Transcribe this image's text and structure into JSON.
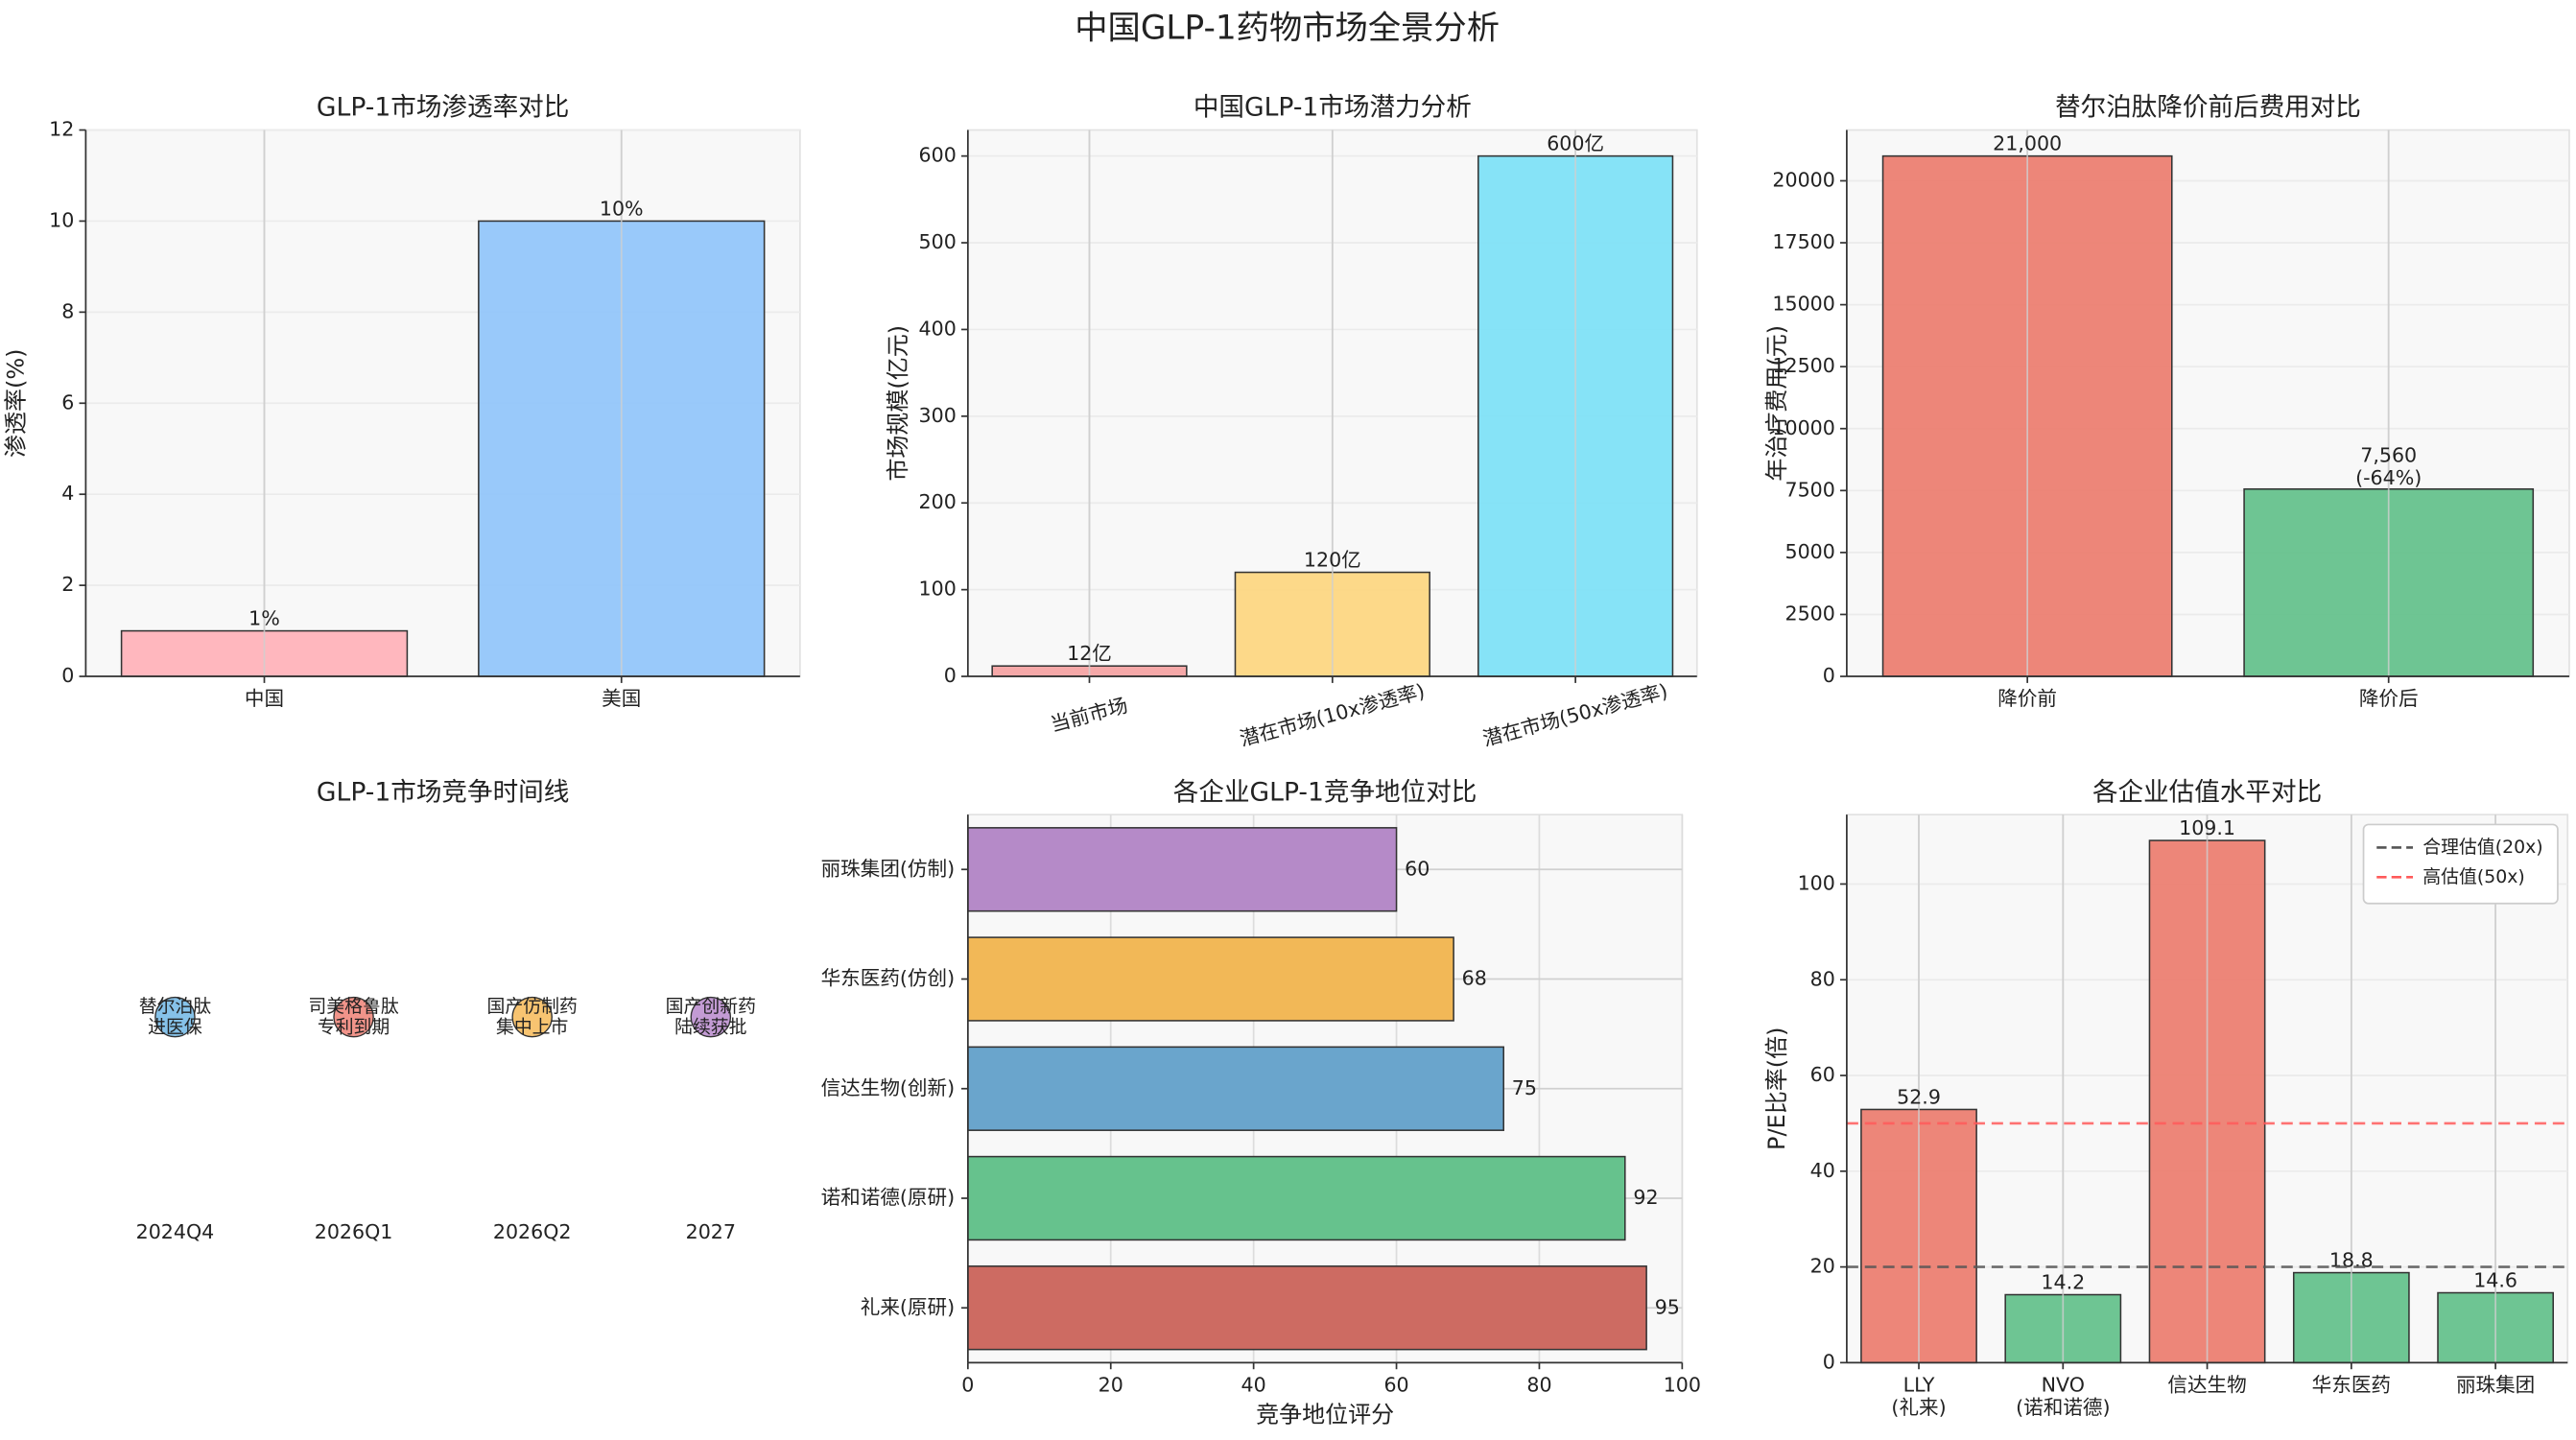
{
  "title": "中国GLP-1药物市场全景分析",
  "chart_data": [
    {
      "type": "bar",
      "title": "GLP-1市场渗透率对比",
      "ylabel": "渗透率(%)",
      "categories": [
        "中国",
        "美国"
      ],
      "values": [
        1,
        10
      ],
      "value_labels": [
        "1%",
        "10%"
      ],
      "colors": [
        "#ffb3ba",
        "#93c6fa"
      ],
      "ylim": [
        0,
        12
      ],
      "yticks": [
        0,
        2,
        4,
        6,
        8,
        10,
        12
      ],
      "grid": true
    },
    {
      "type": "bar",
      "title": "中国GLP-1市场潜力分析",
      "ylabel": "市场规模(亿元)",
      "categories": [
        "当前市场",
        "潜在市场(10x渗透率)",
        "潜在市场(50x渗透率)"
      ],
      "values": [
        12,
        120,
        600
      ],
      "value_labels": [
        "12亿",
        "120亿",
        "600亿"
      ],
      "colors": [
        "#f4a3a3",
        "#fdd783",
        "#7fe2f7"
      ],
      "ylim": [
        0,
        630
      ],
      "yticks": [
        0,
        100,
        200,
        300,
        400,
        500,
        600
      ],
      "xtick_rotation": -15,
      "grid": true
    },
    {
      "type": "bar",
      "title": "替尔泊肽降价前后费用对比",
      "ylabel": "年治疗费用(元)",
      "categories": [
        "降价前",
        "降价后"
      ],
      "values": [
        21000,
        7560
      ],
      "value_labels": [
        "21,000",
        "7,560\n(-64%)"
      ],
      "colors": [
        "#ec7f72",
        "#66c28d"
      ],
      "ylim": [
        0,
        22050
      ],
      "yticks": [
        0,
        2500,
        5000,
        7500,
        10000,
        12500,
        15000,
        17500,
        20000
      ],
      "grid": true
    },
    {
      "type": "timeline",
      "title": "GLP-1市场竞争时间线",
      "dates": [
        "2024Q4",
        "2026Q1",
        "2026Q2",
        "2027"
      ],
      "events": [
        "替尔泊肽\n进医保",
        "司美格鲁肽\n专利到期",
        "国产仿制药\n集中上市",
        "国产创新药\n陆续获批"
      ],
      "colors": [
        "#5dade2",
        "#ec7063",
        "#f5b041",
        "#af7ac5"
      ]
    },
    {
      "type": "barh",
      "title": "各企业GLP-1竞争地位对比",
      "xlabel": "竞争地位评分",
      "categories": [
        "礼来(原研)",
        "诺和诺德(原研)",
        "信达生物(创新)",
        "华东医药(仿创)",
        "丽珠集团(仿制)"
      ],
      "values": [
        95,
        92,
        75,
        68,
        60
      ],
      "colors": [
        "#cd6b62",
        "#66c28d",
        "#6aa5cc",
        "#f2b857",
        "#b58ac8"
      ],
      "xlim": [
        0,
        100
      ],
      "xticks": [
        0,
        20,
        40,
        60,
        80,
        100
      ],
      "grid": true
    },
    {
      "type": "bar",
      "title": "各企业估值水平对比",
      "ylabel": "P/E比率(倍)",
      "categories": [
        "LLY\n(礼来)",
        "NVO\n(诺和诺德)",
        "信达生物",
        "华东医药",
        "丽珠集团"
      ],
      "values": [
        52.9,
        14.2,
        109.1,
        18.8,
        14.6
      ],
      "colors": [
        "#ec7f72",
        "#66c28d",
        "#ec7f72",
        "#66c28d",
        "#66c28d"
      ],
      "ylim": [
        0,
        114.5
      ],
      "yticks": [
        0,
        20,
        40,
        60,
        80,
        100
      ],
      "grid": true,
      "reference_lines": [
        {
          "name": "合理估值(20x)",
          "value": 20,
          "color": "#555555"
        },
        {
          "name": "高估值(50x)",
          "value": 50,
          "color": "#ff5a5a"
        }
      ],
      "legend": "upper right"
    }
  ]
}
